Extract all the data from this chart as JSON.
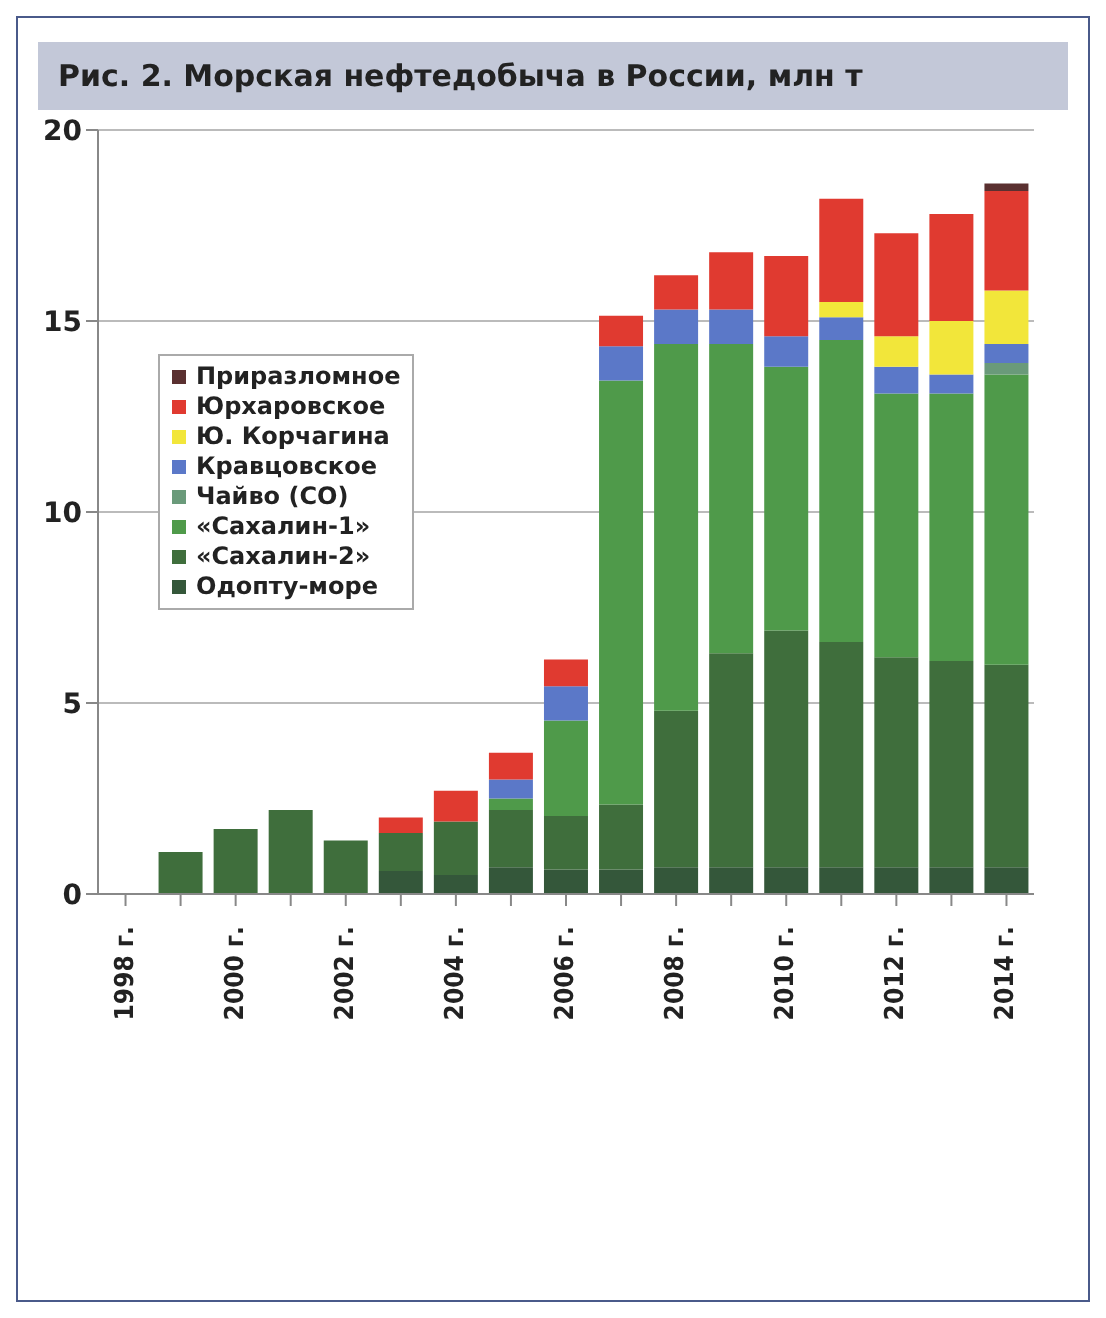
{
  "chart_data": {
    "type": "bar",
    "title": "Рис. 2. Морская нефтедобыча в России, млн т",
    "stacked": true,
    "categories": [
      "1998 г.",
      null,
      "2000 г.",
      null,
      "2002 г.",
      null,
      "2004 г.",
      null,
      "2006 г.",
      null,
      "2008 г.",
      null,
      "2010 г.",
      null,
      "2012 г.",
      null,
      "2014 г."
    ],
    "series": [
      {
        "name": "Одопту-море",
        "color": "#34573a",
        "values": [
          null,
          null,
          null,
          null,
          null,
          0.6,
          0.5,
          0.7,
          0.64,
          0.64,
          0.7,
          0.7,
          0.7,
          0.7,
          0.7,
          0.7,
          0.7
        ]
      },
      {
        "name": "«Сахалин-2»",
        "color": "#3f6e3c",
        "values": [
          null,
          1.1,
          1.7,
          2.2,
          1.4,
          1.0,
          1.4,
          1.5,
          1.4,
          1.7,
          4.1,
          5.6,
          6.2,
          5.9,
          5.5,
          5.4,
          5.3
        ]
      },
      {
        "name": "«Сахалин-1»",
        "color": "#4f9a4a",
        "values": [
          null,
          null,
          null,
          null,
          null,
          null,
          null,
          0.3,
          2.5,
          11.1,
          9.6,
          8.1,
          6.9,
          7.9,
          6.9,
          7.0,
          7.6
        ]
      },
      {
        "name": "Чайво (СО)",
        "color": "#6a9a7a",
        "values": [
          null,
          null,
          null,
          null,
          null,
          null,
          null,
          null,
          null,
          null,
          null,
          null,
          null,
          null,
          null,
          null,
          0.3
        ]
      },
      {
        "name": "Кравцовское",
        "color": "#5b78c8",
        "values": [
          null,
          null,
          null,
          null,
          null,
          null,
          null,
          0.5,
          0.9,
          0.9,
          0.9,
          0.9,
          0.8,
          0.6,
          0.7,
          0.5,
          0.5
        ]
      },
      {
        "name": "Ю. Корчагина",
        "color": "#f2e63a",
        "values": [
          null,
          null,
          null,
          null,
          null,
          null,
          null,
          null,
          null,
          null,
          null,
          null,
          null,
          0.4,
          0.8,
          1.4,
          1.4
        ]
      },
      {
        "name": "Юрхаровское",
        "color": "#e03a30",
        "values": [
          null,
          null,
          null,
          null,
          null,
          0.4,
          0.8,
          0.7,
          0.7,
          0.8,
          0.9,
          1.5,
          2.1,
          2.7,
          2.7,
          2.8,
          2.6
        ]
      },
      {
        "name": "Приразломное",
        "color": "#5a3030",
        "values": [
          null,
          null,
          null,
          null,
          null,
          null,
          null,
          null,
          null,
          null,
          null,
          null,
          null,
          null,
          null,
          null,
          0.2
        ]
      }
    ],
    "ylim": [
      0,
      20
    ],
    "yticks": [
      0,
      5,
      10,
      15,
      20
    ],
    "grid": "y",
    "legend": "top left"
  }
}
